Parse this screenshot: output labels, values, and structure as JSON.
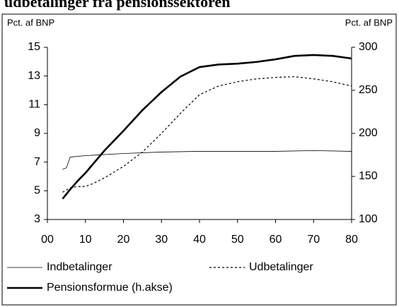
{
  "chart_data": {
    "type": "line",
    "title": "udbetalinger fra pensionssektoren",
    "ylabel": "Pct. af BNP",
    "y2label": "Pct. af BNP",
    "xlim": [
      0,
      80
    ],
    "xticks": [
      {
        "value": 0,
        "label": "00"
      },
      10,
      20,
      30,
      40,
      50,
      60,
      70,
      80
    ],
    "ylim": [
      3,
      15
    ],
    "yticks": [
      3,
      5,
      7,
      9,
      11,
      13,
      15
    ],
    "y2lim": [
      100,
      300
    ],
    "y2ticks": [
      100,
      150,
      200,
      250,
      300
    ],
    "grid": false,
    "series": [
      {
        "name": "Indbetalinger",
        "color": "#000000",
        "style": "solid",
        "width": 0.8,
        "x": [
          4,
          5,
          6,
          10,
          20,
          30,
          40,
          60,
          70,
          80
        ],
        "values": [
          6.5,
          6.6,
          7.35,
          7.45,
          7.6,
          7.7,
          7.75,
          7.75,
          7.8,
          7.75
        ]
      },
      {
        "name": "Udbetalinger",
        "color": "#000000",
        "style": "dashed",
        "width": 1.2,
        "x": [
          4,
          6,
          8,
          10,
          12,
          15,
          20,
          25,
          30,
          35,
          40,
          45,
          50,
          55,
          60,
          65,
          70,
          75,
          80
        ],
        "values": [
          4.9,
          5.2,
          5.3,
          5.3,
          5.5,
          5.9,
          6.7,
          7.7,
          9.0,
          10.4,
          11.7,
          12.3,
          12.6,
          12.8,
          12.9,
          12.95,
          12.8,
          12.6,
          12.3
        ]
      },
      {
        "name": "Pensionsformue (h.akse)",
        "color": "#000000",
        "style": "solid",
        "width": 2.6,
        "axis": "y2",
        "x": [
          4,
          6,
          8,
          10,
          15,
          20,
          25,
          30,
          35,
          40,
          45,
          50,
          55,
          60,
          65,
          70,
          75,
          80
        ],
        "values": [
          124,
          135,
          145,
          154,
          180,
          203,
          227,
          248,
          266,
          277,
          280,
          281,
          283,
          286,
          290,
          291,
          290,
          287
        ]
      }
    ]
  }
}
